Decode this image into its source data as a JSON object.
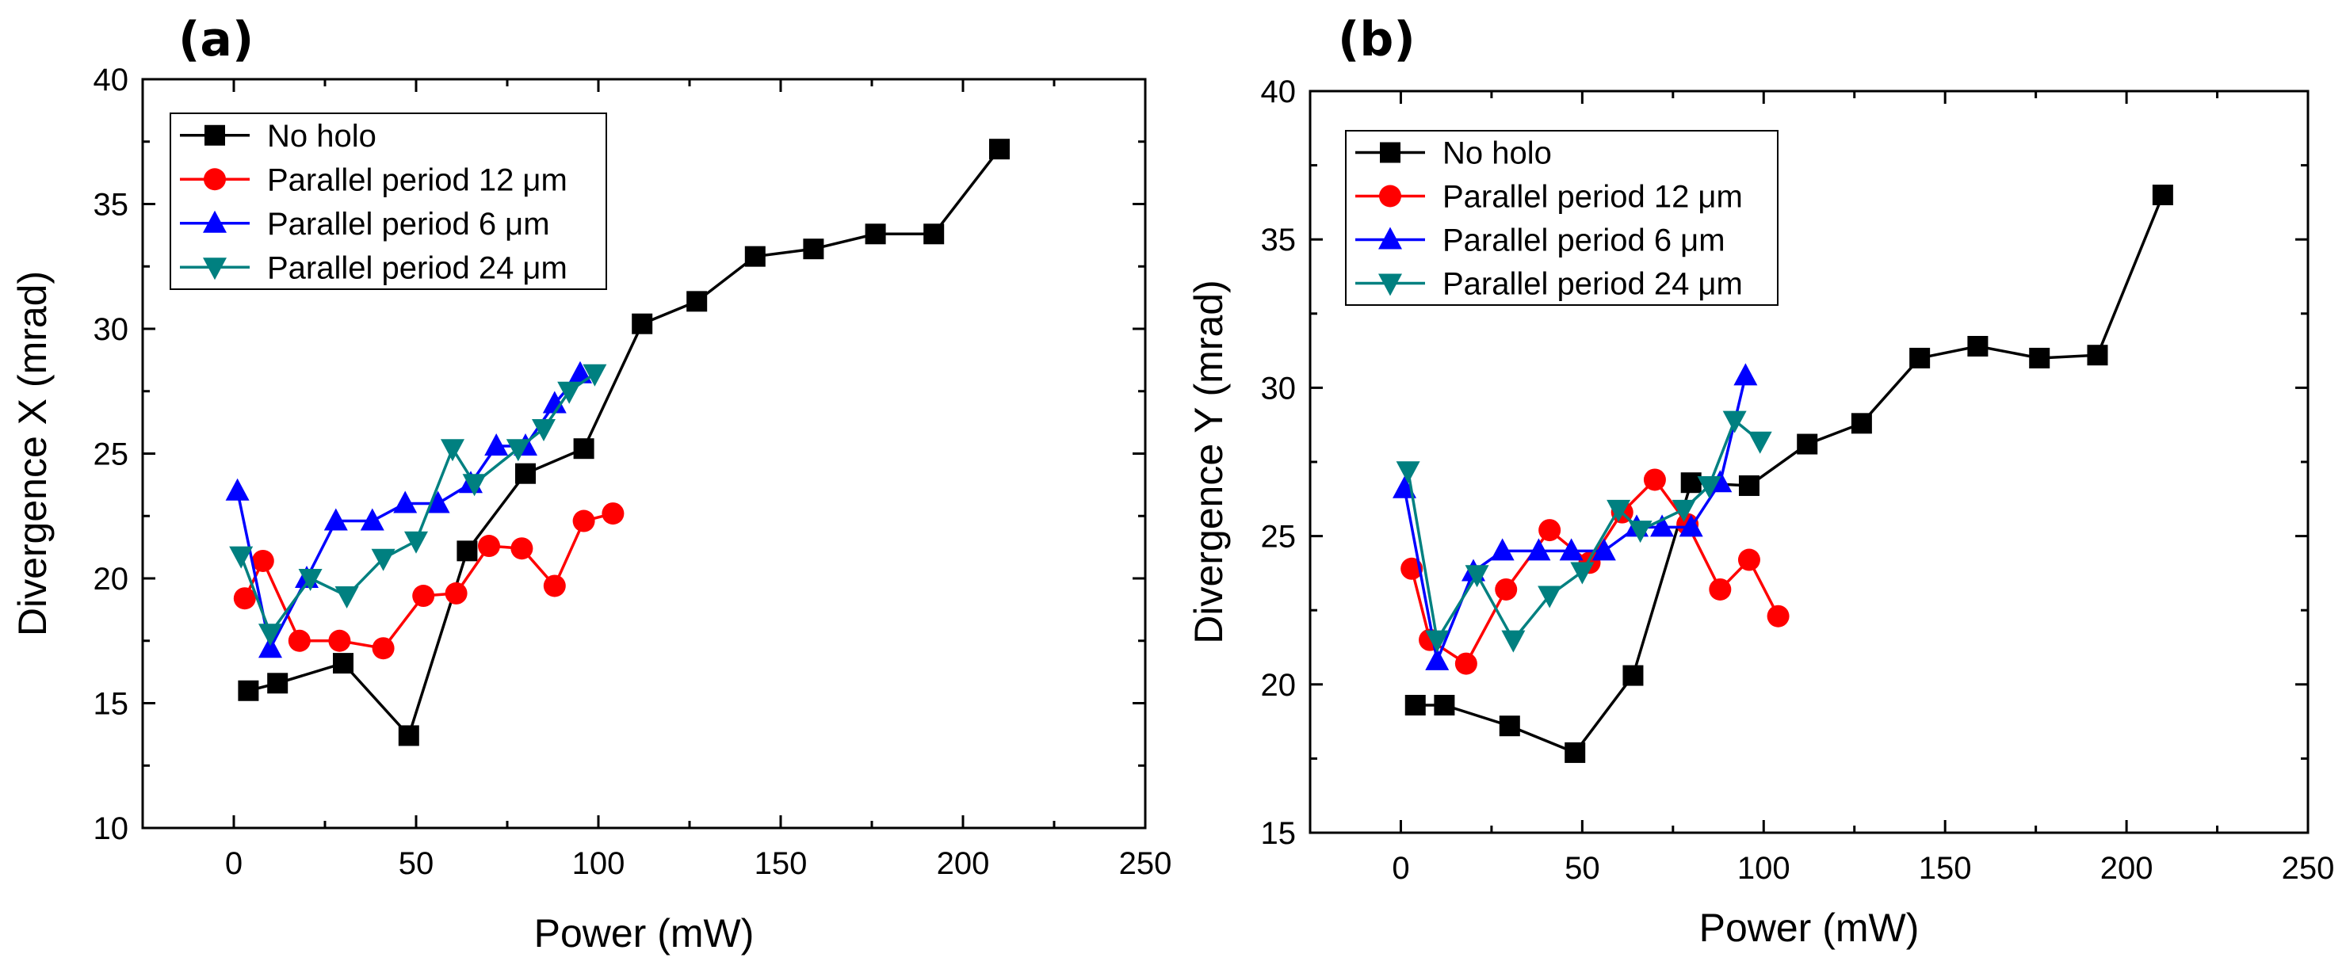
{
  "chart_data": [
    {
      "type": "line",
      "panel_label": "(a)",
      "xlabel": "Power (mW)",
      "ylabel": "Divergence X (mrad)",
      "xlim": [
        -25,
        250
      ],
      "ylim": [
        10,
        40
      ],
      "xticks": [
        "0",
        "50",
        "100",
        "150",
        "200",
        "250"
      ],
      "xtick_values": [
        0,
        50,
        100,
        150,
        200,
        250
      ],
      "yticks": [
        "10",
        "15",
        "20",
        "25",
        "30",
        "35",
        "40"
      ],
      "ytick_values": [
        10,
        15,
        20,
        25,
        30,
        35,
        40
      ],
      "legend_position": "top-left",
      "series": [
        {
          "name": "No holo",
          "color": "#000000",
          "marker": "square",
          "x": [
            4,
            12,
            30,
            48,
            64,
            80,
            96,
            112,
            127,
            143,
            159,
            176,
            192,
            210
          ],
          "y": [
            15.5,
            15.8,
            16.6,
            13.7,
            21.1,
            24.2,
            25.2,
            30.2,
            31.1,
            32.9,
            33.2,
            33.8,
            33.8,
            37.2
          ]
        },
        {
          "name": "Parallel period 12 μm",
          "color": "#ff0000",
          "marker": "circle",
          "x": [
            3,
            8,
            18,
            29,
            41,
            52,
            61,
            70,
            79,
            88,
            96,
            104
          ],
          "y": [
            19.2,
            20.7,
            17.5,
            17.5,
            17.2,
            19.3,
            19.4,
            21.3,
            21.2,
            19.7,
            22.3,
            22.6
          ]
        },
        {
          "name": "Parallel period 6 μm",
          "color": "#0000ff",
          "marker": "triangle-up",
          "x": [
            1,
            10,
            20,
            28,
            38,
            47,
            56,
            65,
            72,
            80,
            88,
            95
          ],
          "y": [
            23.5,
            17.2,
            20.0,
            22.3,
            22.3,
            23.0,
            23.0,
            23.8,
            25.3,
            25.3,
            27.0,
            28.2
          ]
        },
        {
          "name": "Parallel period 24 μm",
          "color": "#008080",
          "marker": "triangle-down",
          "x": [
            2,
            10,
            21,
            31,
            41,
            50,
            60,
            66,
            78,
            85,
            92,
            99
          ],
          "y": [
            20.9,
            17.8,
            20.0,
            19.3,
            20.8,
            21.5,
            25.2,
            23.8,
            25.2,
            26.0,
            27.5,
            28.2
          ]
        }
      ]
    },
    {
      "type": "line",
      "panel_label": "(b)",
      "xlabel": "Power (mW)",
      "ylabel": "Divergence Y (mrad)",
      "xlim": [
        -25,
        250
      ],
      "ylim": [
        15,
        40
      ],
      "xticks": [
        "0",
        "50",
        "100",
        "150",
        "200",
        "250"
      ],
      "xtick_values": [
        0,
        50,
        100,
        150,
        200,
        250
      ],
      "yticks": [
        "15",
        "20",
        "25",
        "30",
        "35",
        "40"
      ],
      "ytick_values": [
        15,
        20,
        25,
        30,
        35,
        40
      ],
      "legend_position": "top-left",
      "series": [
        {
          "name": "No holo",
          "color": "#000000",
          "marker": "square",
          "x": [
            4,
            12,
            30,
            48,
            64,
            80,
            96,
            112,
            127,
            143,
            159,
            176,
            192,
            210
          ],
          "y": [
            19.3,
            19.3,
            18.6,
            17.7,
            20.3,
            26.8,
            26.7,
            28.1,
            28.8,
            31.0,
            31.4,
            31.0,
            31.1,
            36.5
          ]
        },
        {
          "name": "Parallel period 12 μm",
          "color": "#ff0000",
          "marker": "circle",
          "x": [
            3,
            8,
            18,
            29,
            41,
            52,
            61,
            70,
            79,
            88,
            96,
            104
          ],
          "y": [
            23.9,
            21.5,
            20.7,
            23.2,
            25.2,
            24.1,
            25.8,
            26.9,
            25.4,
            23.2,
            24.2,
            22.3
          ]
        },
        {
          "name": "Parallel period 6 μm",
          "color": "#0000ff",
          "marker": "triangle-up",
          "x": [
            1,
            10,
            20,
            28,
            38,
            47,
            56,
            65,
            72,
            80,
            88,
            95
          ],
          "y": [
            26.6,
            20.8,
            23.8,
            24.5,
            24.5,
            24.5,
            24.5,
            25.3,
            25.3,
            25.3,
            26.8,
            30.4
          ]
        },
        {
          "name": "Parallel period 24 μm",
          "color": "#008080",
          "marker": "triangle-down",
          "x": [
            2,
            10,
            21,
            31,
            41,
            50,
            60,
            66,
            78,
            85,
            92,
            99
          ],
          "y": [
            27.2,
            21.5,
            23.7,
            21.5,
            23.0,
            23.8,
            25.9,
            25.2,
            25.9,
            26.7,
            28.9,
            28.2
          ]
        }
      ]
    }
  ]
}
